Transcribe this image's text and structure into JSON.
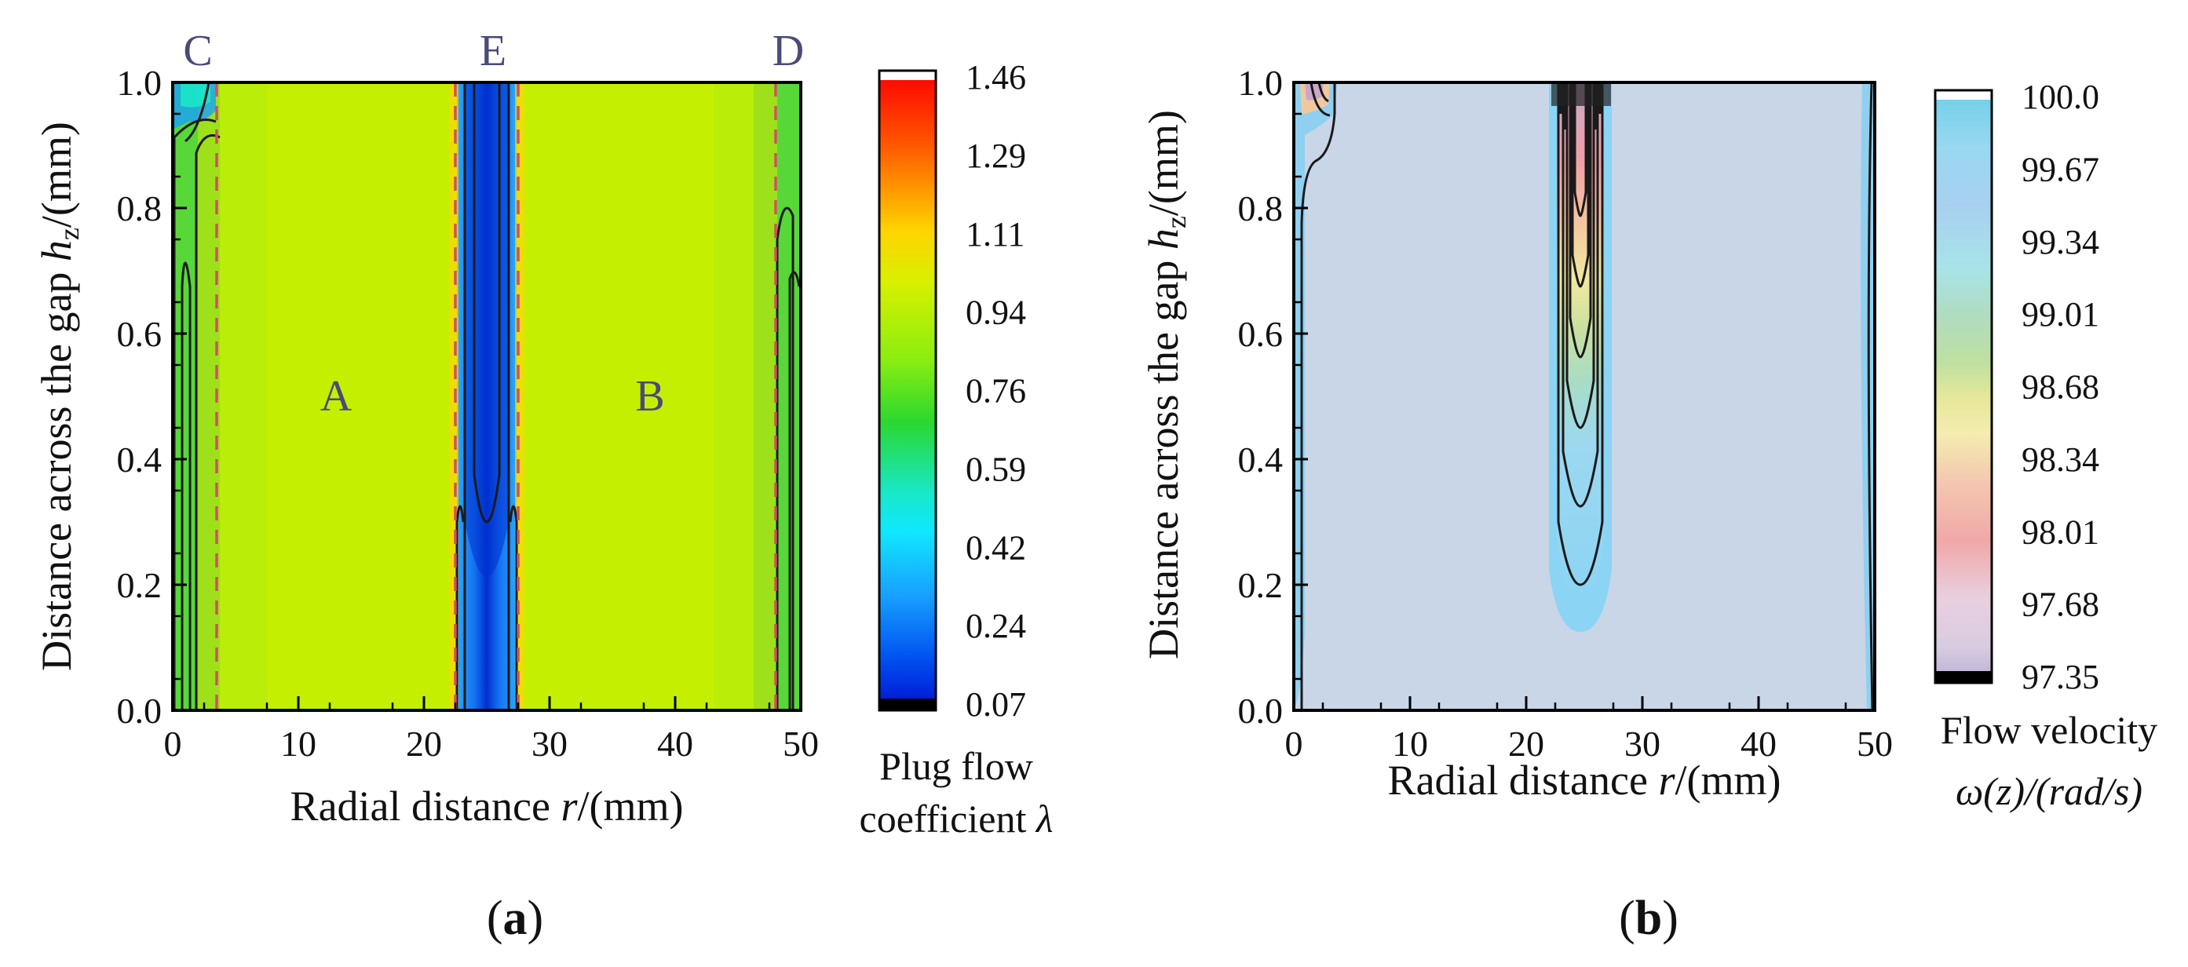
{
  "chart_data": [
    {
      "type": "heatmap",
      "panel_label": "(a)",
      "panel_letter": "a",
      "xlabel": "Radial distance",
      "xlabel_var": "r",
      "xlabel_unit": "/(mm)",
      "ylabel": "Distance across the gap",
      "ylabel_var": "h",
      "ylabel_sub": "z",
      "ylabel_unit": "/(mm)",
      "xlim": [
        0,
        50
      ],
      "ylim": [
        0,
        1.0
      ],
      "x_ticks": [
        "0",
        "10",
        "20",
        "30",
        "40",
        "50"
      ],
      "y_ticks": [
        "0.0",
        "0.2",
        "0.4",
        "0.6",
        "0.8",
        "1.0"
      ],
      "colorbar": {
        "label_line1": "Plug flow",
        "label_line2": "coefficient",
        "label_var": "λ",
        "ticks": [
          "1.46",
          "1.29",
          "1.11",
          "0.94",
          "0.76",
          "0.59",
          "0.42",
          "0.24",
          "0.07"
        ],
        "range": [
          0.07,
          1.46
        ]
      },
      "regions": [
        {
          "label": "A",
          "r": 13,
          "z": 0.5
        },
        {
          "label": "B",
          "r": 38,
          "z": 0.5
        },
        {
          "label": "C",
          "r": 2,
          "z": 1.05
        },
        {
          "label": "E",
          "r": 25.5,
          "z": 1.05
        },
        {
          "label": "D",
          "r": 49,
          "z": 1.05
        }
      ],
      "boundaries_r": [
        3.5,
        22.5,
        27.5,
        48
      ],
      "dominant_value": 1.0,
      "min_region": {
        "r_center": 25,
        "value": 0.3
      }
    },
    {
      "type": "heatmap",
      "panel_label": "(b)",
      "panel_letter": "b",
      "xlabel": "Radial distance",
      "xlabel_var": "r",
      "xlabel_unit": "/(mm)",
      "ylabel": "Distance across the gap",
      "ylabel_var": "h",
      "ylabel_sub": "z",
      "ylabel_unit": "/(mm)",
      "xlim": [
        0,
        50
      ],
      "ylim": [
        0,
        1.0
      ],
      "x_ticks": [
        "0",
        "10",
        "20",
        "30",
        "40",
        "50"
      ],
      "y_ticks": [
        "0.0",
        "0.2",
        "0.4",
        "0.6",
        "0.8",
        "1.0"
      ],
      "colorbar": {
        "label_line1": "Flow velocity",
        "label_var_line": "ω(z)/(rad/s)",
        "ticks": [
          "100.0",
          "99.67",
          "99.34",
          "99.01",
          "98.68",
          "98.34",
          "98.01",
          "97.68",
          "97.35"
        ],
        "range": [
          97.35,
          100.0
        ]
      },
      "dominant_value": 99.8,
      "min_region": {
        "r_center": 25,
        "value": 97.6
      }
    }
  ],
  "colors": {
    "a_background": "#c4f000",
    "a_edge_green": "#58d838",
    "a_mid_green": "#9ee01a",
    "a_center_blue": "#1da0ff",
    "a_center_dark": "#0033d6",
    "boundary_dashed": "#d05060",
    "b_background": "#c8d6e8",
    "b_edge_cyan": "#8fd0f0",
    "contour": "#1a1a1a",
    "region_text": "#4b4a78"
  }
}
